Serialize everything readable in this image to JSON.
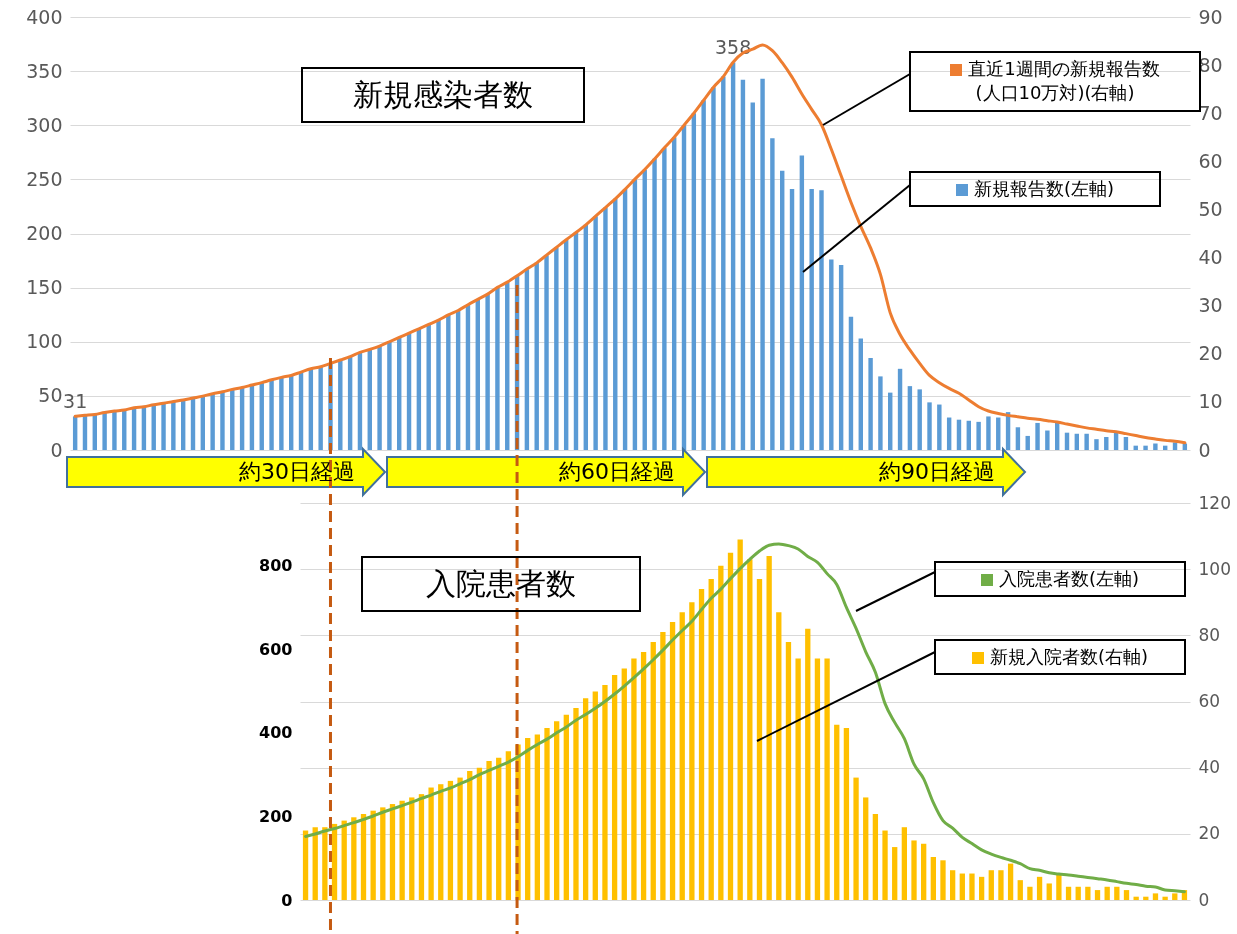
{
  "chart_data": [
    {
      "type": "bar",
      "title": "新規感染者数",
      "categories": [
        null,
        null,
        null,
        null,
        null,
        null,
        null,
        null,
        null,
        null,
        null,
        null,
        null,
        null,
        null,
        null,
        null,
        null,
        null,
        null,
        null,
        null,
        null,
        null,
        null,
        null,
        null,
        null,
        null,
        null,
        null,
        null,
        null,
        null,
        null,
        null,
        null,
        null,
        null,
        null,
        null,
        null,
        null,
        null,
        null,
        null,
        null,
        null,
        null,
        null,
        null,
        null,
        null,
        null,
        null,
        null,
        null,
        null,
        null,
        null,
        null,
        null,
        null,
        null,
        null,
        null,
        null,
        null,
        null,
        null,
        null,
        null,
        null,
        null,
        null,
        null,
        null,
        null,
        null,
        null,
        null,
        null,
        null,
        null,
        null,
        null,
        null,
        null,
        null,
        null,
        null,
        null,
        null,
        null,
        null,
        null,
        null,
        null,
        null,
        null,
        null,
        null,
        null,
        null,
        null,
        null,
        null,
        null,
        null,
        null,
        null,
        null,
        null,
        null
      ],
      "series": [
        {
          "name": "新規報告数(左軸)",
          "color": "#5b9bd5",
          "values": [
            31,
            32,
            33,
            35,
            36,
            37,
            39,
            40,
            42,
            43,
            45,
            46,
            48,
            50,
            52,
            54,
            56,
            58,
            60,
            62,
            65,
            67,
            69,
            72,
            75,
            77,
            80,
            83,
            86,
            90,
            93,
            96,
            100,
            104,
            108,
            112,
            116,
            120,
            125,
            129,
            134,
            139,
            144,
            150,
            155,
            161,
            167,
            173,
            180,
            187,
            194,
            201,
            208,
            216,
            224,
            232,
            241,
            250,
            259,
            269,
            279,
            289,
            300,
            311,
            323,
            335,
            345,
            358,
            342,
            321,
            343,
            288,
            258,
            241,
            272,
            241,
            240,
            176,
            171,
            123,
            103,
            85,
            68,
            53,
            75,
            59,
            56,
            44,
            42,
            30,
            28,
            27,
            26,
            31,
            30,
            35,
            21,
            13,
            25,
            18,
            25,
            16,
            15,
            15,
            10,
            12,
            16,
            12,
            4,
            4,
            6,
            4,
            7,
            6
          ],
          "value_labels": [
            "31",
            null,
            null,
            null,
            null,
            null,
            null,
            null,
            null,
            null,
            null,
            null,
            null,
            null,
            null,
            null,
            null,
            null,
            null,
            null,
            null,
            null,
            null,
            null,
            null,
            null,
            null,
            null,
            null,
            null,
            null,
            null,
            null,
            null,
            null,
            null,
            null,
            null,
            null,
            null,
            null,
            null,
            null,
            null,
            null,
            null,
            null,
            null,
            null,
            null,
            null,
            null,
            null,
            null,
            null,
            null,
            null,
            null,
            null,
            null,
            null,
            null,
            null,
            null,
            null,
            null,
            null,
            "358",
            null,
            null,
            null,
            null,
            null,
            null,
            null,
            null,
            null,
            null,
            null,
            null,
            null,
            null,
            null,
            null,
            null,
            null,
            null,
            null,
            null,
            null,
            null,
            null,
            null,
            null,
            null,
            null,
            null,
            null,
            null,
            null,
            null,
            null,
            null,
            null,
            null,
            null,
            null,
            null,
            null,
            null,
            null,
            null,
            null,
            null
          ]
        },
        {
          "name": "直近1週間の新規報告数\n(人口10万対)(右軸)",
          "type": "line",
          "axis": "y2",
          "color": "#ed7d31",
          "values": [
            7.0,
            7.2,
            7.4,
            7.8,
            8.1,
            8.3,
            8.8,
            9.0,
            9.4,
            9.7,
            10.1,
            10.4,
            10.8,
            11.2,
            11.7,
            12.1,
            12.6,
            13.0,
            13.5,
            14.0,
            14.6,
            15.1,
            15.5,
            16.2,
            16.9,
            17.3,
            18.0,
            18.7,
            19.4,
            20.3,
            20.9,
            21.6,
            22.5,
            23.4,
            24.3,
            25.2,
            26.1,
            27.0,
            28.1,
            29.0,
            30.2,
            31.3,
            32.4,
            33.8,
            34.9,
            36.2,
            37.6,
            38.9,
            40.5,
            42.1,
            43.7,
            45.2,
            46.8,
            48.6,
            50.4,
            52.2,
            54.2,
            56.3,
            58.3,
            60.5,
            62.8,
            65.0,
            67.5,
            70.0,
            72.7,
            75.4,
            77.6,
            80.6,
            82.5,
            83.3,
            84.2,
            83.0,
            80.5,
            77.5,
            74.0,
            70.8,
            67.6,
            62.5,
            57.0,
            51.5,
            46.5,
            42.0,
            36.5,
            28.5,
            24.0,
            20.8,
            18.0,
            15.5,
            14.0,
            12.8,
            11.8,
            10.4,
            9.0,
            8.1,
            7.6,
            7.2,
            6.9,
            6.6,
            6.4,
            6.1,
            5.8,
            5.4,
            5.0,
            4.6,
            4.3,
            4.0,
            3.8,
            3.4,
            3.0,
            2.6,
            2.3,
            2.0,
            1.8,
            1.5
          ]
        }
      ],
      "ylim": [
        0,
        400
      ],
      "yticks": [
        0,
        50,
        100,
        150,
        200,
        250,
        300,
        350,
        400
      ],
      "y2lim": [
        0,
        90
      ],
      "y2ticks": [
        0,
        10,
        20,
        30,
        40,
        50,
        60,
        70,
        80,
        90
      ],
      "grid": "y",
      "legend": "top right",
      "annotations": [
        "約30日経過",
        "約60日経過",
        "約90日経過"
      ]
    },
    {
      "type": "bar",
      "title": "入院患者数",
      "categories": [
        null,
        null,
        null,
        null,
        null,
        null,
        null,
        null,
        null,
        null,
        null,
        null,
        null,
        null,
        null,
        null,
        null,
        null,
        null,
        null,
        null,
        null,
        null,
        null,
        null,
        null,
        null,
        null,
        null,
        null,
        null,
        null,
        null,
        null,
        null,
        null,
        null,
        null,
        null,
        null,
        null,
        null,
        null,
        null,
        null,
        null,
        null,
        null,
        null,
        null,
        null,
        null,
        null,
        null,
        null,
        null,
        null,
        null,
        null,
        null,
        null,
        null,
        null,
        null,
        null,
        null,
        null,
        null,
        null,
        null,
        null,
        null,
        null,
        null,
        null,
        null,
        null,
        null,
        null,
        null,
        null,
        null,
        null,
        null,
        null,
        null,
        null,
        null,
        null,
        null,
        null,
        null
      ],
      "series": [
        {
          "name": "新規入院者数(右軸)",
          "axis": "y2",
          "color": "#ffc000",
          "values": [
            21,
            22,
            22,
            23,
            24,
            25,
            26,
            27,
            28,
            29,
            30,
            31,
            32,
            34,
            35,
            36,
            37,
            39,
            40,
            42,
            43,
            45,
            47,
            49,
            50,
            52,
            54,
            56,
            58,
            61,
            63,
            65,
            68,
            70,
            73,
            75,
            78,
            81,
            84,
            87,
            90,
            94,
            97,
            101,
            105,
            109,
            103,
            97,
            104,
            87,
            78,
            73,
            82,
            73,
            73,
            53,
            52,
            37,
            31,
            26,
            21,
            16,
            22,
            18,
            17,
            13,
            12,
            9,
            8,
            8,
            7,
            9,
            9,
            11,
            6,
            4,
            7,
            5,
            8,
            4,
            4,
            4,
            3,
            4,
            4,
            3,
            1,
            1,
            2,
            1,
            2,
            3
          ]
        },
        {
          "name": "入院患者数(左軸)",
          "type": "line",
          "color": "#70ad47",
          "values": [
            152,
            158,
            165,
            171,
            178,
            185,
            193,
            201,
            210,
            218,
            226,
            234,
            243,
            251,
            260,
            268,
            278,
            288,
            300,
            310,
            320,
            330,
            343,
            358,
            372,
            385,
            400,
            414,
            430,
            444,
            459,
            475,
            493,
            512,
            532,
            553,
            575,
            598,
            622,
            645,
            667,
            695,
            722,
            744,
            769,
            793,
            815,
            835,
            849,
            852,
            848,
            840,
            822,
            808,
            781,
            755,
            700,
            650,
            594,
            545,
            470,
            425,
            386,
            325,
            290,
            233,
            190,
            172,
            150,
            135,
            120,
            110,
            102,
            95,
            87,
            75,
            71,
            65,
            62,
            60,
            57,
            54,
            51,
            48,
            44,
            40,
            37,
            33,
            31,
            24,
            22,
            20
          ]
        }
      ],
      "ylim": [
        0,
        950
      ],
      "yticks": [
        0,
        200,
        400,
        600,
        800
      ],
      "y2lim": [
        0,
        120
      ],
      "y2ticks": [
        0,
        20,
        40,
        60,
        80,
        100,
        120
      ],
      "grid": "y2",
      "legend": "right"
    }
  ]
}
